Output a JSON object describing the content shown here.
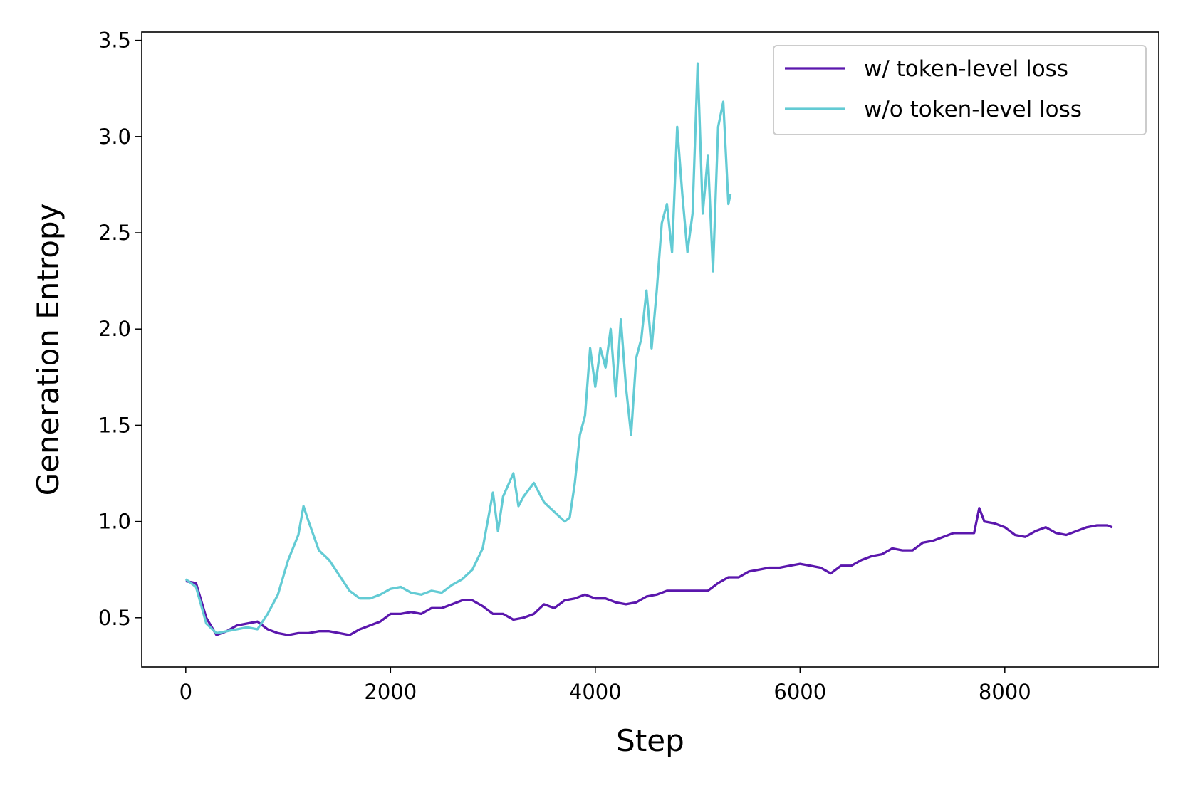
{
  "chart_data": {
    "type": "line",
    "xlabel": "Step",
    "ylabel": "Generation Entropy",
    "xlim": [
      -430,
      9504
    ],
    "ylim": [
      0.244,
      3.543
    ],
    "xticks": [
      0,
      2000,
      4000,
      6000,
      8000
    ],
    "yticks": [
      0.5,
      {
        "value": 1,
        "label": "1.0"
      },
      1.5,
      {
        "value": 2,
        "label": "2.0"
      },
      2.5,
      {
        "value": 3,
        "label": "3.0"
      },
      3.5
    ],
    "legend": "upper right",
    "series": [
      {
        "name": "w/ token-level loss",
        "color": "#5b17ad",
        "x": [
          0,
          100,
          200,
          300,
          400,
          500,
          600,
          700,
          800,
          900,
          1000,
          1100,
          1200,
          1300,
          1400,
          1500,
          1600,
          1700,
          1800,
          1900,
          2000,
          2100,
          2200,
          2300,
          2400,
          2500,
          2600,
          2700,
          2800,
          2900,
          3000,
          3100,
          3200,
          3300,
          3400,
          3500,
          3600,
          3700,
          3800,
          3900,
          4000,
          4100,
          4200,
          4300,
          4400,
          4500,
          4600,
          4700,
          4800,
          4900,
          5000,
          5100,
          5200,
          5300,
          5400,
          5500,
          5600,
          5700,
          5800,
          5900,
          6000,
          6100,
          6200,
          6300,
          6400,
          6500,
          6600,
          6700,
          6800,
          6900,
          7000,
          7100,
          7200,
          7300,
          7400,
          7500,
          7600,
          7700,
          7750,
          7800,
          7900,
          8000,
          8100,
          8200,
          8300,
          8400,
          8500,
          8600,
          8700,
          8800,
          8900,
          9000,
          9050
        ],
        "values": [
          0.69,
          0.68,
          0.5,
          0.41,
          0.43,
          0.46,
          0.47,
          0.48,
          0.44,
          0.42,
          0.41,
          0.42,
          0.42,
          0.43,
          0.43,
          0.42,
          0.41,
          0.44,
          0.46,
          0.48,
          0.52,
          0.52,
          0.53,
          0.52,
          0.55,
          0.55,
          0.57,
          0.59,
          0.59,
          0.56,
          0.52,
          0.52,
          0.49,
          0.5,
          0.52,
          0.57,
          0.55,
          0.59,
          0.6,
          0.62,
          0.6,
          0.6,
          0.58,
          0.57,
          0.58,
          0.61,
          0.62,
          0.64,
          0.64,
          0.64,
          0.64,
          0.64,
          0.68,
          0.71,
          0.71,
          0.74,
          0.75,
          0.76,
          0.76,
          0.77,
          0.78,
          0.77,
          0.76,
          0.73,
          0.77,
          0.77,
          0.8,
          0.82,
          0.83,
          0.86,
          0.85,
          0.85,
          0.89,
          0.9,
          0.92,
          0.94,
          0.94,
          0.94,
          1.07,
          1.0,
          0.99,
          0.97,
          0.93,
          0.92,
          0.95,
          0.97,
          0.94,
          0.93,
          0.95,
          0.97,
          0.98,
          0.98,
          0.97
        ]
      },
      {
        "name": "w/o token-level loss",
        "color": "#63cbd4",
        "x": [
          0,
          100,
          200,
          300,
          400,
          500,
          600,
          700,
          800,
          900,
          1000,
          1100,
          1150,
          1200,
          1300,
          1400,
          1500,
          1600,
          1700,
          1800,
          1900,
          2000,
          2100,
          2200,
          2300,
          2400,
          2500,
          2600,
          2700,
          2800,
          2900,
          3000,
          3050,
          3100,
          3200,
          3250,
          3300,
          3400,
          3500,
          3600,
          3700,
          3750,
          3800,
          3850,
          3900,
          3950,
          4000,
          4050,
          4100,
          4150,
          4200,
          4250,
          4300,
          4350,
          4400,
          4450,
          4500,
          4550,
          4600,
          4650,
          4700,
          4750,
          4800,
          4850,
          4900,
          4950,
          5000,
          5050,
          5100,
          5150,
          5200,
          5250,
          5300,
          5320
        ],
        "values": [
          0.7,
          0.66,
          0.47,
          0.42,
          0.43,
          0.44,
          0.45,
          0.44,
          0.52,
          0.62,
          0.8,
          0.93,
          1.08,
          1.0,
          0.85,
          0.8,
          0.72,
          0.64,
          0.6,
          0.6,
          0.62,
          0.65,
          0.66,
          0.63,
          0.62,
          0.64,
          0.63,
          0.67,
          0.7,
          0.75,
          0.86,
          1.15,
          0.95,
          1.13,
          1.25,
          1.08,
          1.13,
          1.2,
          1.1,
          1.05,
          1.0,
          1.02,
          1.2,
          1.45,
          1.55,
          1.9,
          1.7,
          1.9,
          1.8,
          2.0,
          1.65,
          2.05,
          1.7,
          1.45,
          1.85,
          1.95,
          2.2,
          1.9,
          2.2,
          2.55,
          2.65,
          2.4,
          3.05,
          2.7,
          2.4,
          2.6,
          3.38,
          2.6,
          2.9,
          2.3,
          3.05,
          3.18,
          2.65,
          2.7
        ]
      }
    ]
  }
}
